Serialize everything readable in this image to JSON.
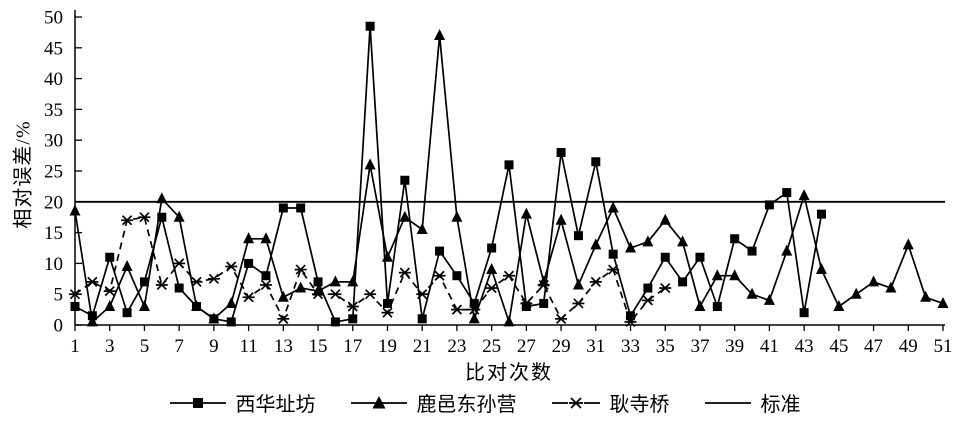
{
  "chart_data": {
    "type": "line",
    "title": "",
    "xlabel": "比对次数",
    "ylabel": "相对误差/%",
    "xlim": [
      1,
      51
    ],
    "ylim": [
      0,
      50
    ],
    "yticks": [
      0,
      5,
      10,
      15,
      20,
      25,
      30,
      35,
      40,
      45,
      50
    ],
    "xticks": [
      1,
      3,
      5,
      7,
      9,
      11,
      13,
      15,
      17,
      19,
      21,
      23,
      25,
      27,
      29,
      31,
      33,
      35,
      37,
      39,
      41,
      43,
      45,
      47,
      49,
      51
    ],
    "grid": false,
    "legend_position": "bottom-center",
    "line_color": "#000000",
    "background": "#ffffff",
    "standard_value": 20,
    "series": [
      {
        "name": "西华址坊",
        "marker": "square",
        "line_style": "solid",
        "values": [
          3,
          1.5,
          11,
          2,
          7,
          17.5,
          6,
          3,
          1,
          0.5,
          10,
          8,
          19,
          19,
          7,
          0.5,
          1,
          48.5,
          3.5,
          23.5,
          1,
          12,
          8,
          3.5,
          12.5,
          26,
          3,
          3.5,
          28,
          14.5,
          26.5,
          11.5,
          1.5,
          6,
          11,
          7,
          11,
          3,
          14,
          12,
          19.5,
          21.5,
          2,
          18,
          null,
          null,
          null,
          null,
          null,
          null,
          null
        ]
      },
      {
        "name": "鹿邑东孙营",
        "marker": "triangle",
        "line_style": "solid",
        "values": [
          18.5,
          0.5,
          3,
          9.5,
          3,
          20.5,
          17.5,
          3,
          1,
          3.5,
          14,
          14,
          4.5,
          6,
          5.5,
          7,
          7,
          26,
          11,
          17.5,
          15.5,
          47,
          17.5,
          1,
          9,
          0.5,
          18,
          7,
          17,
          6.5,
          13,
          19,
          12.5,
          13.5,
          17,
          13.5,
          3,
          8,
          8,
          5,
          4,
          12,
          21,
          9,
          3,
          5,
          7,
          6,
          13,
          4.5,
          3.5
        ]
      },
      {
        "name": "耿寺桥",
        "marker": "asterisk",
        "line_style": "dashed",
        "values": [
          5,
          7,
          5.5,
          17,
          17.5,
          6.5,
          10,
          7,
          7.5,
          9.5,
          4.5,
          6.5,
          1,
          9,
          5,
          5,
          3,
          5,
          2,
          8.5,
          5,
          8,
          2.5,
          2.5,
          6,
          8,
          3.5,
          6.5,
          1,
          3.5,
          7,
          9,
          0.5,
          4,
          6,
          null,
          null,
          null,
          null,
          null,
          null,
          null,
          null,
          null,
          null,
          null,
          null,
          null,
          null,
          null,
          null
        ]
      },
      {
        "name": "标准",
        "marker": "none",
        "line_style": "solid",
        "constant": 20
      }
    ]
  }
}
